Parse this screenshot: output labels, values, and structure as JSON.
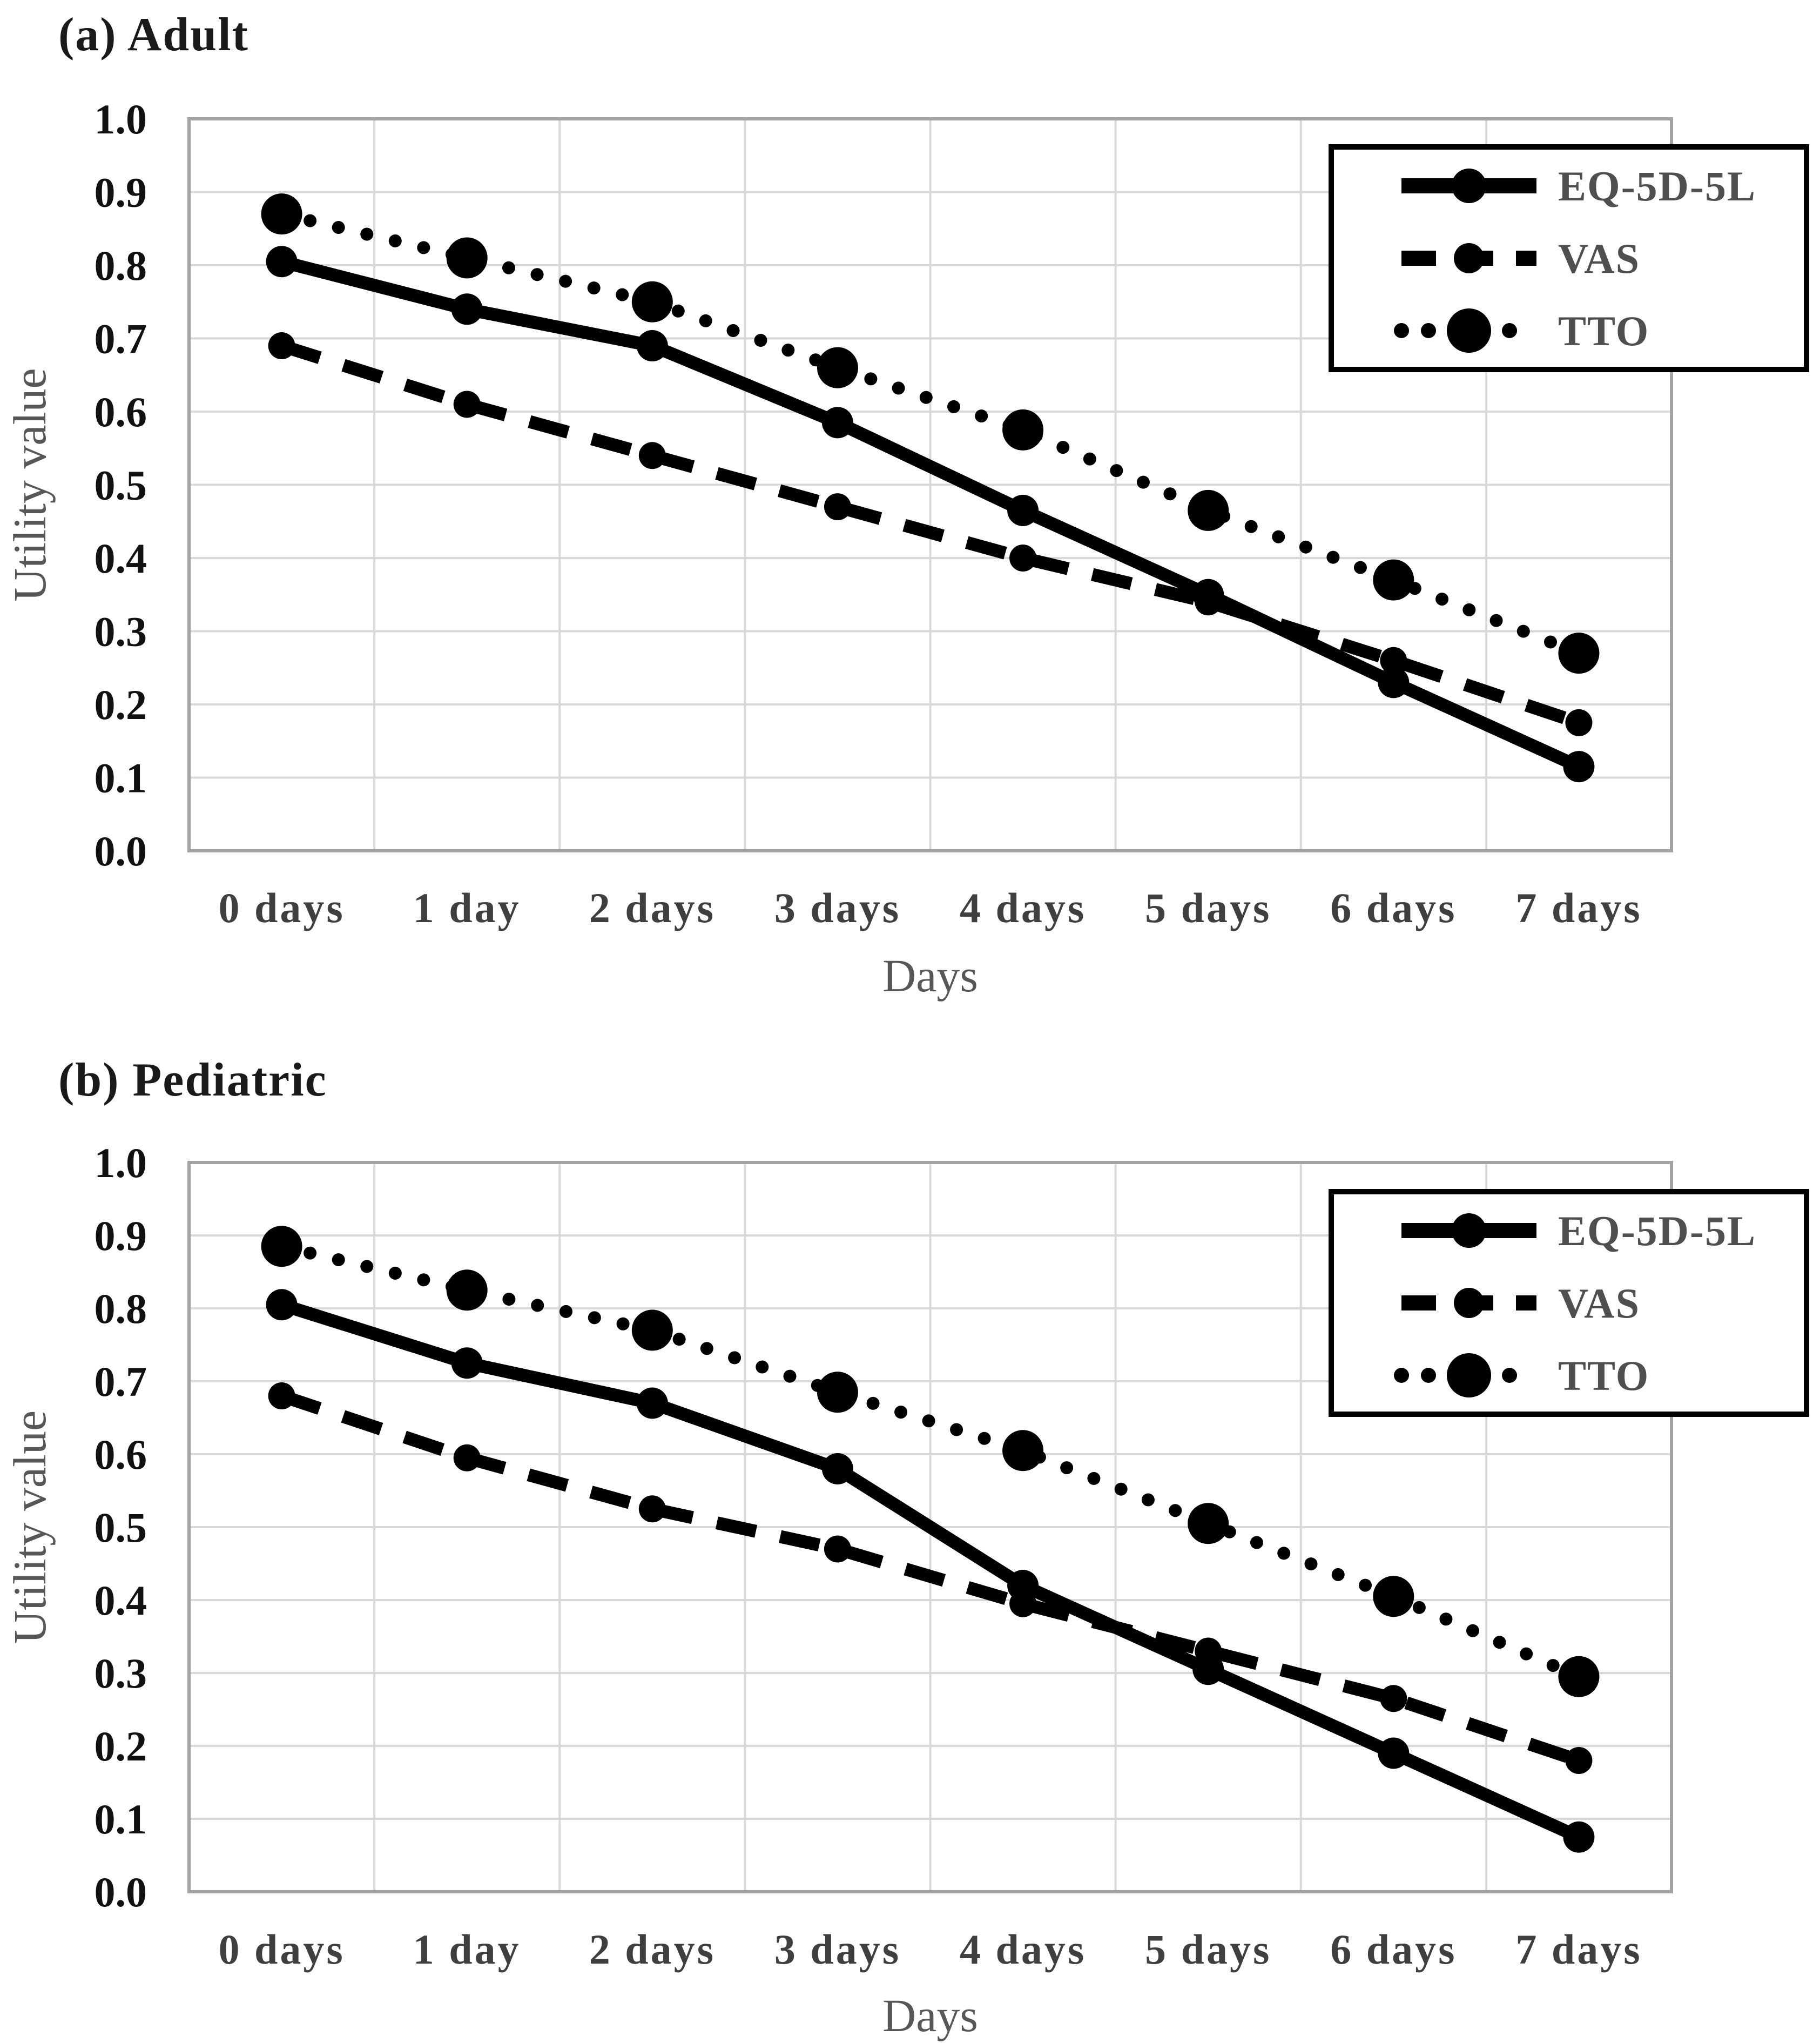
{
  "chart_data": [
    {
      "type": "line",
      "title": "(a) Adult",
      "xlabel": "Days",
      "ylabel": "Utility value",
      "ylim": [
        0.0,
        1.0
      ],
      "ytick_labels": [
        "1.0",
        "0.9",
        "0.8",
        "0.7",
        "0.6",
        "0.5",
        "0.4",
        "0.3",
        "0.2",
        "0.1",
        "0.0"
      ],
      "categories": [
        "0 days",
        "1 day",
        "2 days",
        "3 days",
        "4 days",
        "5 days",
        "6 days",
        "7 days"
      ],
      "grid": "on",
      "legend_position": "top-right-inside",
      "series": [
        {
          "name": "EQ-5D-5L",
          "style": "solid",
          "marker": "circle",
          "values": [
            0.805,
            0.74,
            0.69,
            0.585,
            0.465,
            0.35,
            0.23,
            0.115
          ]
        },
        {
          "name": "VAS",
          "style": "dashed",
          "marker": "circle",
          "values": [
            0.69,
            0.61,
            0.54,
            0.47,
            0.4,
            0.34,
            0.26,
            0.175
          ]
        },
        {
          "name": "TTO",
          "style": "dotted",
          "marker": "circle",
          "values": [
            0.87,
            0.81,
            0.75,
            0.66,
            0.575,
            0.465,
            0.37,
            0.27
          ]
        }
      ]
    },
    {
      "type": "line",
      "title": "(b) Pediatric",
      "xlabel": "Days",
      "ylabel": "Utility value",
      "ylim": [
        0.0,
        1.0
      ],
      "ytick_labels": [
        "1.0",
        "0.9",
        "0.8",
        "0.7",
        "0.6",
        "0.5",
        "0.4",
        "0.3",
        "0.2",
        "0.1",
        "0.0"
      ],
      "categories": [
        "0 days",
        "1 day",
        "2 days",
        "3 days",
        "4 days",
        "5 days",
        "6 days",
        "7 days"
      ],
      "grid": "on",
      "legend_position": "top-right-inside",
      "series": [
        {
          "name": "EQ-5D-5L",
          "style": "solid",
          "marker": "circle",
          "values": [
            0.805,
            0.725,
            0.67,
            0.58,
            0.42,
            0.305,
            0.19,
            0.075
          ]
        },
        {
          "name": "VAS",
          "style": "dashed",
          "marker": "circle",
          "values": [
            0.68,
            0.595,
            0.525,
            0.47,
            0.395,
            0.33,
            0.265,
            0.18
          ]
        },
        {
          "name": "TTO",
          "style": "dotted",
          "marker": "circle",
          "values": [
            0.885,
            0.825,
            0.77,
            0.685,
            0.605,
            0.505,
            0.405,
            0.295
          ]
        }
      ]
    }
  ],
  "colors": {
    "series_stroke": "#000000",
    "gridline": "#d8d8d8",
    "plot_border": "#a3a3a3",
    "ytick_text": "#111111",
    "xtick_text": "#3f3f3f",
    "axis_title_text": "#575757",
    "legend_text": "#4f4f4f",
    "legend_border": "#000000",
    "background": "#ffffff"
  }
}
